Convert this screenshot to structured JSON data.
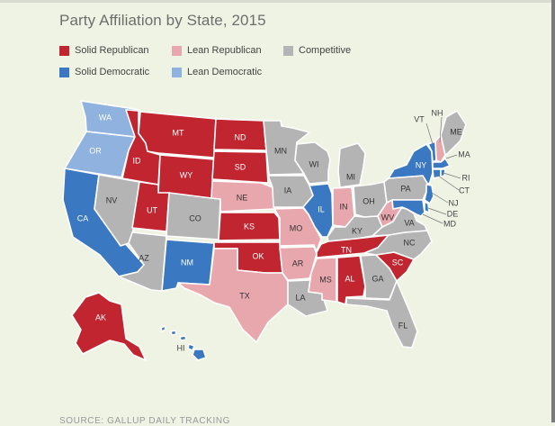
{
  "title": "Party Affiliation by State, 2015",
  "source": "SOURCE: GALLUP DAILY TRACKING",
  "colors": {
    "solid_republican": "#c1252f",
    "lean_republican": "#e8a7ad",
    "competitive": "#b4b4b4",
    "solid_democratic": "#3a78c2",
    "lean_democratic": "#8fb2de"
  },
  "legend": [
    {
      "key": "solid_republican",
      "label": "Solid Republican"
    },
    {
      "key": "lean_republican",
      "label": "Lean Republican"
    },
    {
      "key": "competitive",
      "label": "Competitive"
    },
    {
      "key": "solid_democratic",
      "label": "Solid Democratic"
    },
    {
      "key": "lean_democratic",
      "label": "Lean Democratic"
    }
  ],
  "states": [
    {
      "abbr": "WA",
      "category": "lean_democratic"
    },
    {
      "abbr": "OR",
      "category": "lean_democratic"
    },
    {
      "abbr": "CA",
      "category": "solid_democratic"
    },
    {
      "abbr": "NV",
      "category": "competitive"
    },
    {
      "abbr": "ID",
      "category": "solid_republican"
    },
    {
      "abbr": "MT",
      "category": "solid_republican"
    },
    {
      "abbr": "WY",
      "category": "solid_republican"
    },
    {
      "abbr": "UT",
      "category": "solid_republican"
    },
    {
      "abbr": "AZ",
      "category": "competitive"
    },
    {
      "abbr": "CO",
      "category": "competitive"
    },
    {
      "abbr": "NM",
      "category": "solid_democratic"
    },
    {
      "abbr": "ND",
      "category": "solid_republican"
    },
    {
      "abbr": "SD",
      "category": "solid_republican"
    },
    {
      "abbr": "NE",
      "category": "lean_republican"
    },
    {
      "abbr": "KS",
      "category": "solid_republican"
    },
    {
      "abbr": "OK",
      "category": "solid_republican"
    },
    {
      "abbr": "TX",
      "category": "lean_republican"
    },
    {
      "abbr": "MN",
      "category": "competitive"
    },
    {
      "abbr": "IA",
      "category": "competitive"
    },
    {
      "abbr": "MO",
      "category": "lean_republican"
    },
    {
      "abbr": "AR",
      "category": "lean_republican"
    },
    {
      "abbr": "LA",
      "category": "competitive"
    },
    {
      "abbr": "WI",
      "category": "competitive"
    },
    {
      "abbr": "IL",
      "category": "solid_democratic"
    },
    {
      "abbr": "MI",
      "category": "competitive"
    },
    {
      "abbr": "IN",
      "category": "lean_republican"
    },
    {
      "abbr": "OH",
      "category": "competitive"
    },
    {
      "abbr": "KY",
      "category": "competitive"
    },
    {
      "abbr": "TN",
      "category": "solid_republican"
    },
    {
      "abbr": "MS",
      "category": "lean_republican"
    },
    {
      "abbr": "AL",
      "category": "solid_republican"
    },
    {
      "abbr": "GA",
      "category": "competitive"
    },
    {
      "abbr": "FL",
      "category": "competitive"
    },
    {
      "abbr": "SC",
      "category": "solid_republican"
    },
    {
      "abbr": "NC",
      "category": "competitive"
    },
    {
      "abbr": "VA",
      "category": "competitive"
    },
    {
      "abbr": "WV",
      "category": "lean_republican"
    },
    {
      "abbr": "PA",
      "category": "competitive"
    },
    {
      "abbr": "NY",
      "category": "solid_democratic"
    },
    {
      "abbr": "VT",
      "category": "solid_democratic"
    },
    {
      "abbr": "NH",
      "category": "lean_republican"
    },
    {
      "abbr": "ME",
      "category": "competitive"
    },
    {
      "abbr": "MA",
      "category": "solid_democratic"
    },
    {
      "abbr": "RI",
      "category": "solid_democratic"
    },
    {
      "abbr": "CT",
      "category": "solid_democratic"
    },
    {
      "abbr": "NJ",
      "category": "solid_democratic"
    },
    {
      "abbr": "DE",
      "category": "solid_democratic"
    },
    {
      "abbr": "MD",
      "category": "solid_democratic"
    },
    {
      "abbr": "AK",
      "category": "solid_republican"
    },
    {
      "abbr": "HI",
      "category": "solid_democratic"
    }
  ]
}
